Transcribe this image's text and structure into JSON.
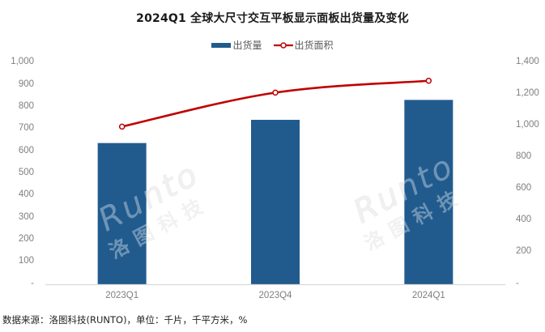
{
  "title": "2024Q1 全球大尺寸交互平板显示面板出货量及变化",
  "legend": [
    {
      "label": "出货量",
      "type": "bar",
      "color": "#215B8E"
    },
    {
      "label": "出货面积",
      "type": "line",
      "color": "#C00000"
    }
  ],
  "source": "数据来源：洛图科技(RUNTO)，单位：千片，千平方米，%",
  "watermark": {
    "brand": "Runto",
    "cn": "洛图科技"
  },
  "y_left_ticks": [
    "1,000",
    "900",
    "800",
    "700",
    "600",
    "500",
    "400",
    "300",
    "200",
    "100",
    "-"
  ],
  "y_right_ticks": [
    "1,400",
    "1,200",
    "1,000",
    "800",
    "600",
    "400",
    "200",
    "-"
  ],
  "chart_data": {
    "type": "bar",
    "title": "2024Q1 全球大尺寸交互平板显示面板出货量及变化",
    "categories": [
      "2023Q1",
      "2023Q4",
      "2024Q1"
    ],
    "series": [
      {
        "name": "出货量",
        "type": "bar",
        "axis": "left",
        "color": "#215B8E",
        "values": [
          640,
          745,
          835
        ]
      },
      {
        "name": "出货面积",
        "type": "line",
        "axis": "right",
        "color": "#C00000",
        "values": [
          1000,
          1215,
          1290
        ]
      }
    ],
    "xlabel": "",
    "ylabel": "",
    "ylim": [
      0,
      1000
    ],
    "y2lim": [
      0,
      1400
    ],
    "grid": false,
    "legend_position": "top",
    "units": "千片，千平方米"
  }
}
